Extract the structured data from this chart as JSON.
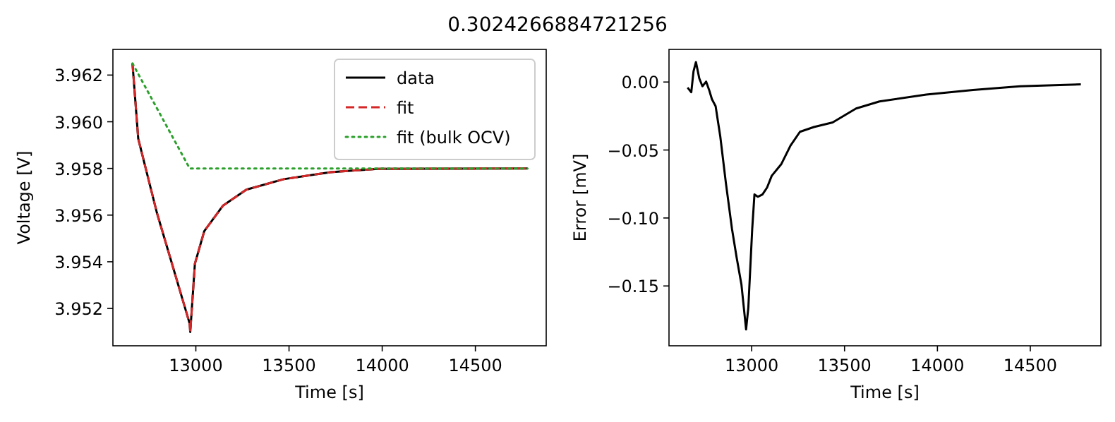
{
  "chart_data": [
    {
      "type": "line",
      "title": "0.3024266884721256",
      "xlabel": "Time [s]",
      "ylabel": "Voltage [V]",
      "xlim": [
        12555,
        14880
      ],
      "ylim": [
        3.9504,
        3.9631
      ],
      "xticks": [
        13000,
        13500,
        14000,
        14500
      ],
      "yticks": [
        3.952,
        3.954,
        3.956,
        3.958,
        {
          "value": 3.96,
          "label": "3.960"
        },
        3.962
      ],
      "legend": "top right",
      "series": [
        {
          "name": "data",
          "color": "#000000",
          "line_style": "solid",
          "x": [
            12660,
            12691,
            12791,
            12967,
            12970,
            12995,
            13045,
            13145,
            13271,
            13472,
            13723,
            13975,
            14780
          ],
          "values": [
            3.9625,
            3.95927,
            3.9561,
            3.95135,
            3.95099,
            3.95392,
            3.95531,
            3.9564,
            3.95709,
            3.95754,
            3.95784,
            3.95798,
            3.958
          ]
        },
        {
          "name": "fit",
          "color": "#d62728",
          "line_style": "dashed",
          "x": [
            12660,
            12691,
            12791,
            12967,
            12970,
            12995,
            13045,
            13145,
            13271,
            13472,
            13723,
            13975,
            14780
          ],
          "values": [
            3.9625,
            3.95927,
            3.9561,
            3.95135,
            3.95099,
            3.95392,
            3.95531,
            3.9564,
            3.95709,
            3.95754,
            3.95784,
            3.95798,
            3.958
          ]
        },
        {
          "name": "fit (bulk OCV)",
          "color": "#2ca02c",
          "line_style": "dotted",
          "x": [
            12660,
            12967,
            14780
          ],
          "values": [
            3.9625,
            3.958,
            3.958
          ]
        }
      ]
    },
    {
      "type": "line",
      "xlabel": "Time [s]",
      "ylabel": "Error [mV]",
      "xlim": [
        12555,
        14880
      ],
      "ylim": [
        -0.194,
        0.024
      ],
      "xticks": [
        13000,
        13500,
        14000,
        14500
      ],
      "yticks": [
        {
          "value": -0.15,
          "label": "−0.15"
        },
        {
          "value": -0.1,
          "label": "−0.10"
        },
        {
          "value": -0.05,
          "label": "−0.05"
        },
        {
          "value": 0,
          "label": "0.00"
        }
      ],
      "series": [
        {
          "color": "#000000",
          "line_style": "solid",
          "x": [
            12655,
            12675,
            12687,
            12700,
            12718,
            12735,
            12755,
            12771,
            12786,
            12806,
            12831,
            12861,
            12894,
            12919,
            12945,
            12970,
            12982,
            13003,
            13015,
            13033,
            13058,
            13083,
            13108,
            13159,
            13209,
            13260,
            13335,
            13436,
            13562,
            13688,
            13940,
            14192,
            14445,
            14772
          ],
          "values": [
            -0.0041,
            -0.0075,
            0.0079,
            0.0147,
            0.0027,
            -0.0031,
            0.0003,
            -0.0058,
            -0.0126,
            -0.0178,
            -0.04,
            -0.074,
            -0.108,
            -0.129,
            -0.149,
            -0.182,
            -0.166,
            -0.108,
            -0.0827,
            -0.0844,
            -0.0827,
            -0.0776,
            -0.069,
            -0.0605,
            -0.0468,
            -0.0366,
            -0.0331,
            -0.0297,
            -0.0195,
            -0.0143,
            -0.0092,
            -0.0058,
            -0.0031,
            -0.0017
          ]
        }
      ]
    }
  ]
}
